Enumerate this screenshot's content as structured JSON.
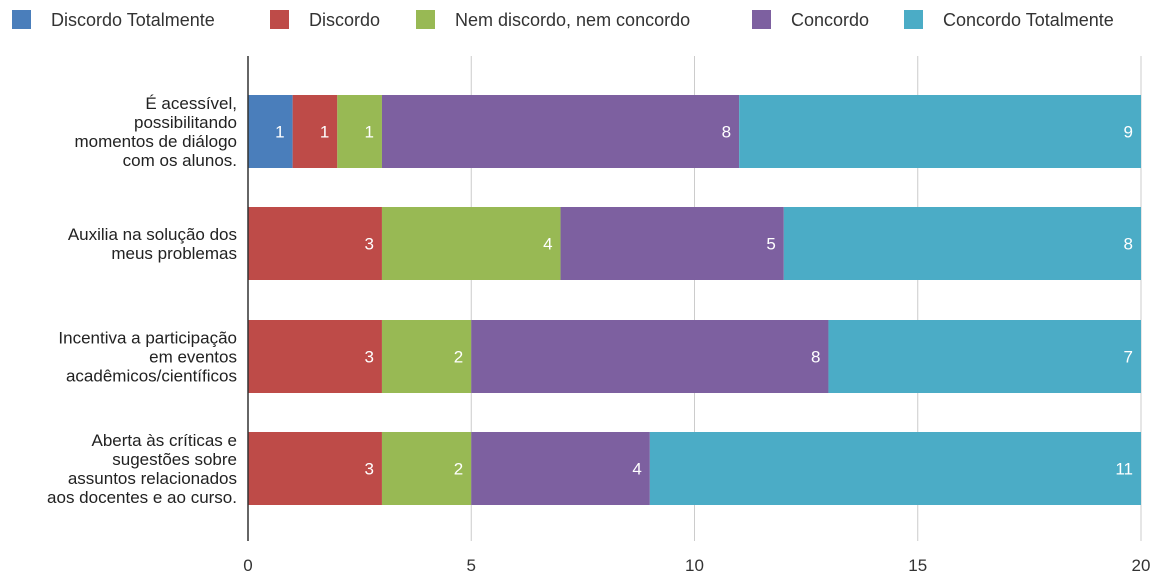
{
  "chart_data": {
    "type": "bar",
    "orientation": "horizontal",
    "stacked": true,
    "title": "",
    "xlabel": "",
    "ylabel": "",
    "xlim": [
      0,
      20
    ],
    "xticks": [
      0,
      5,
      10,
      15,
      20
    ],
    "grid": true,
    "legend_position": "top",
    "categories": [
      [
        "É acessível,",
        "possibilitando",
        "momentos de diálogo",
        "com os alunos."
      ],
      [
        "Auxilia na solução dos",
        "meus problemas"
      ],
      [
        "Incentiva a participação",
        "em eventos",
        "acadêmicos/científicos"
      ],
      [
        "Aberta às críticas e",
        "sugestões sobre",
        "assuntos relacionados",
        "aos docentes e ao curso."
      ]
    ],
    "series": [
      {
        "name": "Discordo Totalmente",
        "color": "#4a7ebb",
        "values": [
          1,
          0,
          0,
          0
        ]
      },
      {
        "name": "Discordo",
        "color": "#be4b48",
        "values": [
          1,
          3,
          3,
          3
        ]
      },
      {
        "name": "Nem discordo, nem concordo",
        "color": "#98b954",
        "values": [
          1,
          4,
          2,
          2
        ]
      },
      {
        "name": "Concordo",
        "color": "#7d60a0",
        "values": [
          8,
          5,
          8,
          4
        ]
      },
      {
        "name": "Concordo Totalmente",
        "color": "#4bacc6",
        "values": [
          9,
          8,
          7,
          11
        ]
      }
    ]
  }
}
